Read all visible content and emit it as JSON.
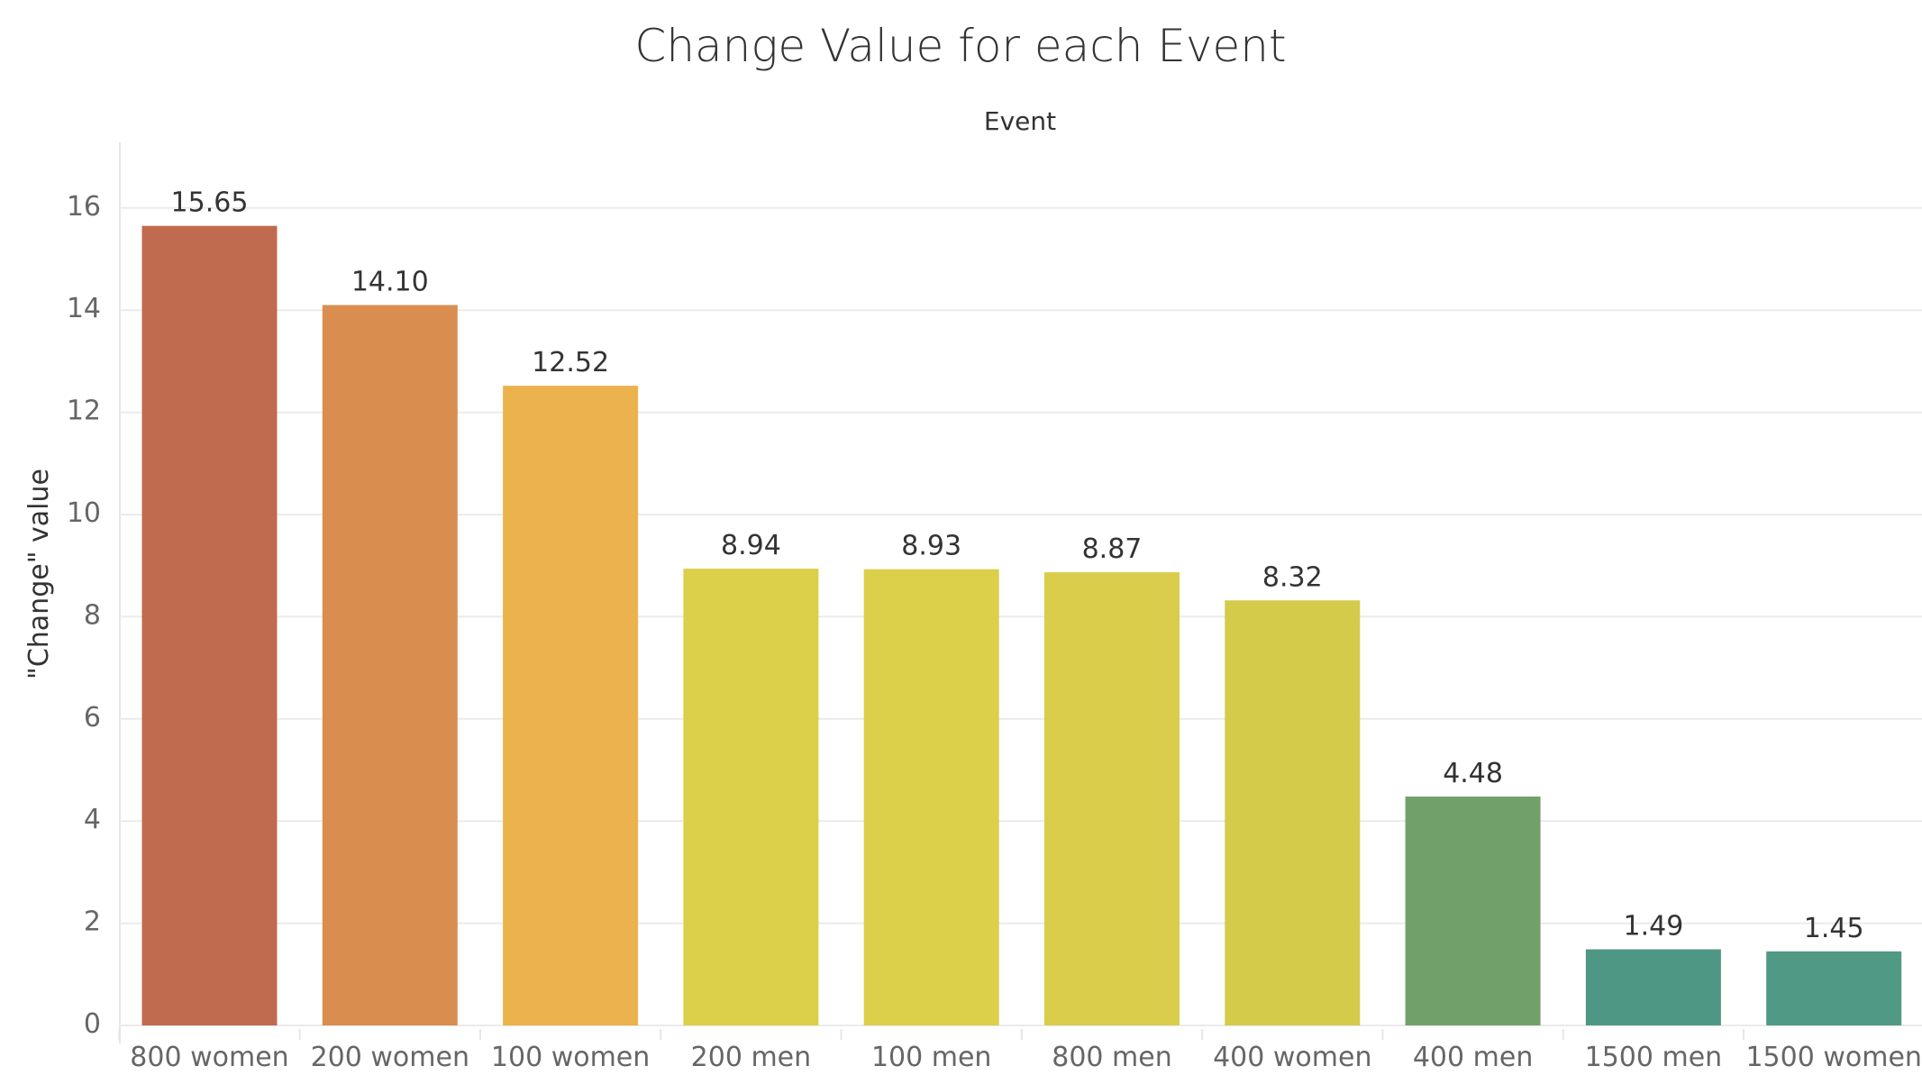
{
  "chart_data": {
    "type": "bar",
    "title": "Change Value for each Event",
    "column_header": "Event",
    "ylabel": "\"Change\" value",
    "xlabel": "",
    "ylim": [
      0,
      16.8
    ],
    "yticks": [
      0,
      2,
      4,
      6,
      8,
      10,
      12,
      14,
      16
    ],
    "grid": true,
    "categories": [
      "800 women",
      "200 women",
      "100 women",
      "200 men",
      "100 men",
      "800 men",
      "400 women",
      "400 men",
      "1500 men",
      "1500 women"
    ],
    "values": [
      15.65,
      14.1,
      12.52,
      8.94,
      8.93,
      8.87,
      8.32,
      4.48,
      1.49,
      1.45
    ],
    "value_labels": [
      "15.65",
      "14.10",
      "12.52",
      "8.94",
      "8.93",
      "8.87",
      "8.32",
      "4.48",
      "1.49",
      "1.45"
    ],
    "colors": [
      "#c06a4f",
      "#d98e4f",
      "#ecb24d",
      "#dccf49",
      "#dccf49",
      "#d9cd4b",
      "#d4cb4b",
      "#72a06a",
      "#4f9785",
      "#509a85"
    ]
  }
}
